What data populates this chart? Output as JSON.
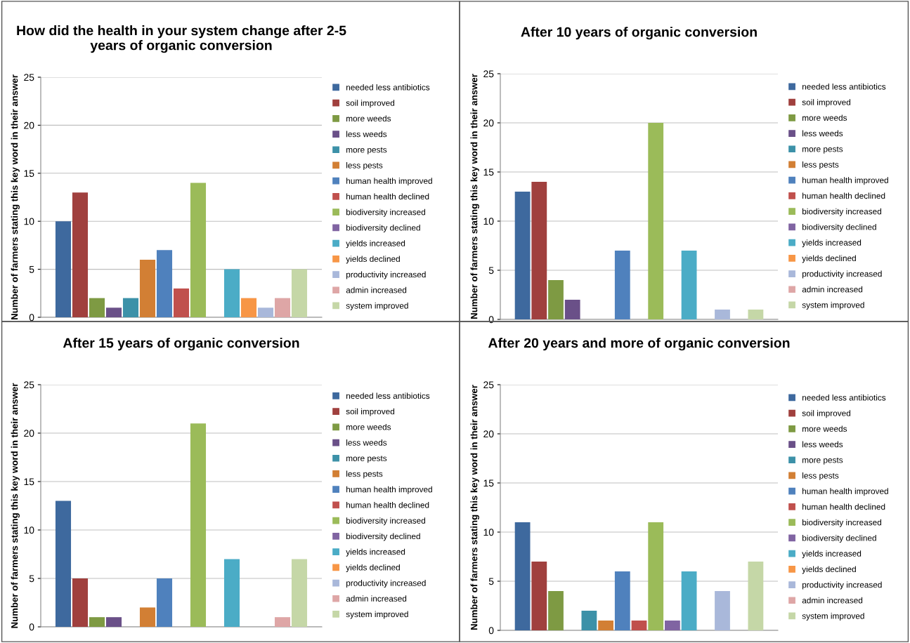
{
  "chart_data": [
    {
      "type": "bar",
      "title": "How did the health in your system change after 2-5 years of organic conversion",
      "ylabel": "Number of farmers stating this key word in their answer",
      "categories": [
        null
      ],
      "ylim": [
        0,
        25
      ],
      "yticks": [
        0,
        5,
        10,
        15,
        20,
        25
      ],
      "grid": "y",
      "legend": "right",
      "series": [
        {
          "name": "needed less antibiotics",
          "color": "#3e699e",
          "values": [
            10
          ]
        },
        {
          "name": "soil improved",
          "color": "#a0403e",
          "values": [
            13
          ]
        },
        {
          "name": "more weeds",
          "color": "#7e9a43",
          "values": [
            2
          ]
        },
        {
          "name": "less weeds",
          "color": "#6a5088",
          "values": [
            1
          ]
        },
        {
          "name": "more pests",
          "color": "#3c91a8",
          "values": [
            2
          ]
        },
        {
          "name": "less pests",
          "color": "#d27f34",
          "values": [
            6
          ]
        },
        {
          "name": "human health improved",
          "color": "#4f81bd",
          "values": [
            7
          ]
        },
        {
          "name": "human health declined",
          "color": "#c0504d",
          "values": [
            3
          ]
        },
        {
          "name": "biodiversity increased",
          "color": "#9bbb59",
          "values": [
            14
          ]
        },
        {
          "name": "biodiversity declined",
          "color": "#8064a2",
          "values": [
            0
          ]
        },
        {
          "name": "yields increased",
          "color": "#4bacc6",
          "values": [
            5
          ]
        },
        {
          "name": "yields declined",
          "color": "#f79646",
          "values": [
            2
          ]
        },
        {
          "name": "productivity increased",
          "color": "#a9b8da",
          "values": [
            1
          ]
        },
        {
          "name": "admin increased",
          "color": "#dea6a6",
          "values": [
            2
          ]
        },
        {
          "name": "system improved",
          "color": "#c5d7a7",
          "values": [
            5
          ]
        }
      ]
    },
    {
      "type": "bar",
      "title": "After 10 years of organic conversion",
      "ylabel": "Number of farmers stating this key word in their answer",
      "categories": [
        null
      ],
      "ylim": [
        0,
        25
      ],
      "yticks": [
        0,
        5,
        10,
        15,
        20,
        25
      ],
      "grid": "y",
      "legend": "right",
      "series": [
        {
          "name": "needed less antibiotics",
          "color": "#3e699e",
          "values": [
            13
          ]
        },
        {
          "name": "soil improved",
          "color": "#a0403e",
          "values": [
            14
          ]
        },
        {
          "name": "more weeds",
          "color": "#7e9a43",
          "values": [
            4
          ]
        },
        {
          "name": "less weeds",
          "color": "#6a5088",
          "values": [
            2
          ]
        },
        {
          "name": "more pests",
          "color": "#3c91a8",
          "values": [
            0
          ]
        },
        {
          "name": "less pests",
          "color": "#d27f34",
          "values": [
            0
          ]
        },
        {
          "name": "human health improved",
          "color": "#4f81bd",
          "values": [
            7
          ]
        },
        {
          "name": "human health declined",
          "color": "#c0504d",
          "values": [
            0
          ]
        },
        {
          "name": "biodiversity increased",
          "color": "#9bbb59",
          "values": [
            20
          ]
        },
        {
          "name": "biodiversity declined",
          "color": "#8064a2",
          "values": [
            0
          ]
        },
        {
          "name": "yields increased",
          "color": "#4bacc6",
          "values": [
            7
          ]
        },
        {
          "name": "yields declined",
          "color": "#f79646",
          "values": [
            0
          ]
        },
        {
          "name": "productivity increased",
          "color": "#a9b8da",
          "values": [
            1
          ]
        },
        {
          "name": "admin increased",
          "color": "#dea6a6",
          "values": [
            0
          ]
        },
        {
          "name": "system improved",
          "color": "#c5d7a7",
          "values": [
            1
          ]
        }
      ]
    },
    {
      "type": "bar",
      "title": "After 15 years of organic conversion",
      "ylabel": "Number of farmers stating this key word in their answer",
      "categories": [
        null
      ],
      "ylim": [
        0,
        25
      ],
      "yticks": [
        0,
        5,
        10,
        15,
        20,
        25
      ],
      "grid": "y",
      "legend": "right",
      "series": [
        {
          "name": "needed less antibiotics",
          "color": "#3e699e",
          "values": [
            13
          ]
        },
        {
          "name": "soil improved",
          "color": "#a0403e",
          "values": [
            5
          ]
        },
        {
          "name": "more weeds",
          "color": "#7e9a43",
          "values": [
            1
          ]
        },
        {
          "name": "less weeds",
          "color": "#6a5088",
          "values": [
            1
          ]
        },
        {
          "name": "more pests",
          "color": "#3c91a8",
          "values": [
            0
          ]
        },
        {
          "name": "less pests",
          "color": "#d27f34",
          "values": [
            2
          ]
        },
        {
          "name": "human health improved",
          "color": "#4f81bd",
          "values": [
            5
          ]
        },
        {
          "name": "human health declined",
          "color": "#c0504d",
          "values": [
            0
          ]
        },
        {
          "name": "biodiversity increased",
          "color": "#9bbb59",
          "values": [
            21
          ]
        },
        {
          "name": "biodiversity declined",
          "color": "#8064a2",
          "values": [
            0
          ]
        },
        {
          "name": "yields increased",
          "color": "#4bacc6",
          "values": [
            7
          ]
        },
        {
          "name": "yields declined",
          "color": "#f79646",
          "values": [
            0
          ]
        },
        {
          "name": "productivity increased",
          "color": "#a9b8da",
          "values": [
            0
          ]
        },
        {
          "name": "admin increased",
          "color": "#dea6a6",
          "values": [
            1
          ]
        },
        {
          "name": "system improved",
          "color": "#c5d7a7",
          "values": [
            7
          ]
        }
      ]
    },
    {
      "type": "bar",
      "title": "After 20 years and more of organic conversion",
      "ylabel": "Number of farmers stating this key word in their answer",
      "categories": [
        null
      ],
      "ylim": [
        0,
        25
      ],
      "yticks": [
        0,
        5,
        10,
        15,
        20,
        25
      ],
      "grid": "y",
      "legend": "right",
      "series": [
        {
          "name": "needed less antibiotics",
          "color": "#3e699e",
          "values": [
            11
          ]
        },
        {
          "name": "soil improved",
          "color": "#a0403e",
          "values": [
            7
          ]
        },
        {
          "name": "more weeds",
          "color": "#7e9a43",
          "values": [
            4
          ]
        },
        {
          "name": "less weeds",
          "color": "#6a5088",
          "values": [
            0
          ]
        },
        {
          "name": "more pests",
          "color": "#3c91a8",
          "values": [
            2
          ]
        },
        {
          "name": "less pests",
          "color": "#d27f34",
          "values": [
            1
          ]
        },
        {
          "name": "human health improved",
          "color": "#4f81bd",
          "values": [
            6
          ]
        },
        {
          "name": "human health declined",
          "color": "#c0504d",
          "values": [
            1
          ]
        },
        {
          "name": "biodiversity increased",
          "color": "#9bbb59",
          "values": [
            11
          ]
        },
        {
          "name": "biodiversity declined",
          "color": "#8064a2",
          "values": [
            1
          ]
        },
        {
          "name": "yields increased",
          "color": "#4bacc6",
          "values": [
            6
          ]
        },
        {
          "name": "yields declined",
          "color": "#f79646",
          "values": [
            0
          ]
        },
        {
          "name": "productivity increased",
          "color": "#a9b8da",
          "values": [
            4
          ]
        },
        {
          "name": "admin increased",
          "color": "#dea6a6",
          "values": [
            0
          ]
        },
        {
          "name": "system improved",
          "color": "#c5d7a7",
          "values": [
            7
          ]
        }
      ]
    }
  ]
}
